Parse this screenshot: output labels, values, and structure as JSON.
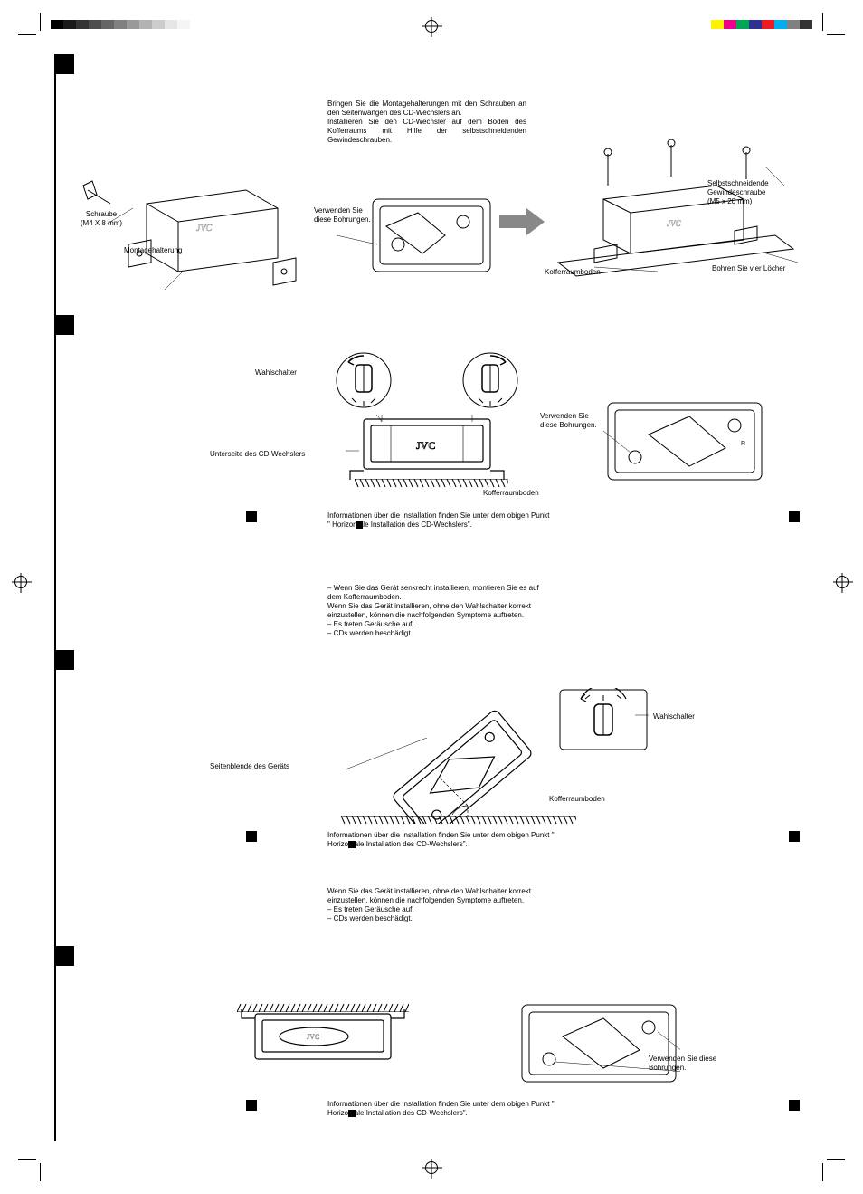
{
  "colors": {
    "top_left_bar": [
      "#000000",
      "#1a1a1a",
      "#333333",
      "#4d4d4d",
      "#666666",
      "#808080",
      "#999999",
      "#b3b3b3",
      "#cccccc",
      "#e6e6e6",
      "#f5f5f5"
    ],
    "top_right_bar": [
      "#fff200",
      "#ec008c",
      "#00a651",
      "#2e3192",
      "#ed1c24",
      "#00aeef",
      "#808080",
      "#333333"
    ]
  },
  "section1": {
    "instr1": "Bringen Sie die Montagehalterungen mit den Schrauben an den Seitenwangen des CD-Wechslers an.",
    "instr2": "Installieren Sie den CD-Wechsler auf dem Boden des Kofferraums mit Hilfe der selbstschneidenden Gewindeschrauben.",
    "label_screw_title": "Schraube",
    "label_screw_size": "(M4 X 8 mm)",
    "label_bracket": "Montagehalterung",
    "label_use_holes": "Verwenden Sie diese Bohrungen.",
    "label_self_tap_title": "Selbstschneidende Gewindeschraube",
    "label_self_tap_size": "(M5 x 20 mm)",
    "label_trunk_floor": "Kofferraumboden",
    "label_drill": "Bohren Sie vier Löcher"
  },
  "section2": {
    "label_switch": "Wahlschalter",
    "label_underside": "Unterseite des CD-Wechslers",
    "label_trunk_floor": "Kofferraumboden",
    "label_use_holes": "Verwenden Sie diese Bohrungen.",
    "note_ref": "Informationen über die Installation finden Sie unter dem obigen Punkt \"  Horizontale Installation des CD-Wechslers\".",
    "bullet1": "– Wenn Sie das Gerät senkrecht installieren, montieren Sie es auf dem Kofferraumboden.",
    "warn1": "Wenn Sie das Gerät installieren, ohne den Wahlschalter korrekt einzustellen, können die nachfolgenden Symptome auftreten.",
    "bullet2": "– Es treten Geräusche auf.",
    "bullet3": "– CDs werden beschädigt."
  },
  "section3": {
    "label_side": "Seitenblende des Geräts",
    "label_switch": "Wahlschalter",
    "label_trunk_floor": "Kofferraumboden",
    "note_ref": "Informationen über die Installation finden Sie unter dem obigen Punkt \"  Horizontale Installation des CD-Wechslers\".",
    "warn1": "Wenn Sie das Gerät installieren, ohne den Wahlschalter korrekt einzustellen, können die nachfolgenden Symptome auftreten.",
    "bullet2": "– Es treten Geräusche auf.",
    "bullet3": "– CDs werden beschädigt."
  },
  "section4": {
    "label_use_holes": "Verwenden Sie diese Bohrungen.",
    "note_ref": "Informationen über die Installation finden Sie unter dem obigen Punkt \"  Horizontale Installation des CD-Wechslers\"."
  },
  "logo": "JVC"
}
